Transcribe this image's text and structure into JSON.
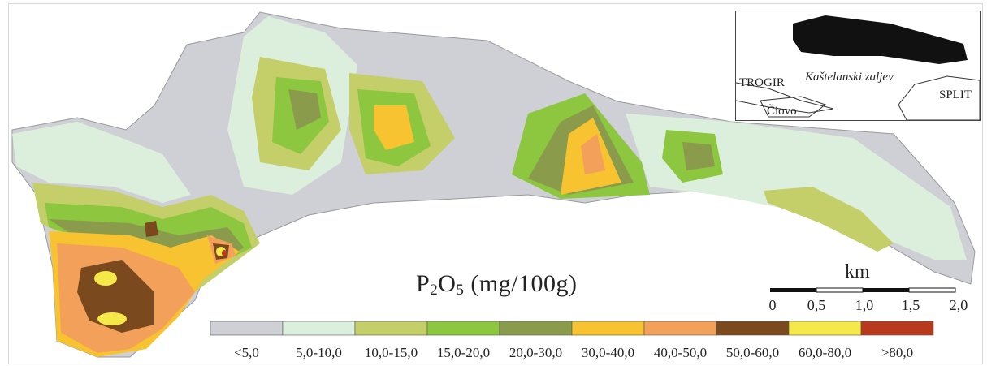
{
  "map": {
    "title_main": "P",
    "title_sub1": "2",
    "title_mid": "O",
    "title_sub2": "5",
    "title_unit": " (mg/100g)"
  },
  "scale_bar": {
    "unit": "km",
    "ticks": [
      "0",
      "0,5",
      "1,0",
      "1,5",
      "2,0"
    ]
  },
  "legend": {
    "classes": [
      {
        "label": "<5,0",
        "color": "#cfcfd6"
      },
      {
        "label": "5,0-10,0",
        "color": "#dcefdc"
      },
      {
        "label": "10,0-15,0",
        "color": "#c5cf6a"
      },
      {
        "label": "15,0-20,0",
        "color": "#8dc63f"
      },
      {
        "label": "20,0-30,0",
        "color": "#8a9b4c"
      },
      {
        "label": "30,0-40,0",
        "color": "#f7c330"
      },
      {
        "label": "40,0-50,0",
        "color": "#f2a05a"
      },
      {
        "label": "50,0-60,0",
        "color": "#7a4a1e"
      },
      {
        "label": "60,0-80,0",
        "color": "#f5e94a"
      },
      {
        "label": ">80,0",
        "color": "#b83a1c"
      }
    ]
  },
  "inset": {
    "labels": {
      "trogir": "TROGIR",
      "bay": "Kaštelanski zaljev",
      "split": "SPLIT",
      "ciovo": "Čiovo"
    },
    "study_area_color": "#111111"
  }
}
